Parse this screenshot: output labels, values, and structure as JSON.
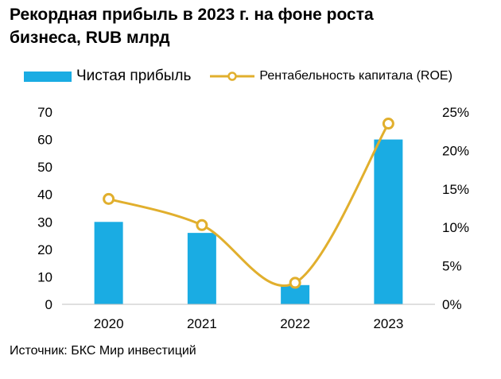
{
  "header": {
    "title_line1": "Рекордная прибыль в 2023 г. на фоне роста",
    "title_line2": "бизнеса, RUB млрд"
  },
  "footer": {
    "source": "Источник: БКС Мир инвестиций"
  },
  "colors": {
    "bar": "#1AACE3",
    "line": "#E1AF2D",
    "marker_fill": "#FFFFFF",
    "axis": "#BFBFBF",
    "text": "#000000"
  },
  "chart_data": {
    "type": "bar",
    "title": "Рекордная прибыль в 2023 г. на фоне роста бизнеса, RUB млрд",
    "categories": [
      "2020",
      "2021",
      "2022",
      "2023"
    ],
    "legend_position": "top",
    "grid": false,
    "series": [
      {
        "name": "Чистая прибыль",
        "type": "bar",
        "axis": "left",
        "values": [
          30,
          26,
          7,
          60
        ]
      },
      {
        "name": "Рентабельность капитала (ROE)",
        "type": "line",
        "axis": "right",
        "smooth": true,
        "values": [
          13.7,
          10.3,
          2.8,
          23.5
        ]
      }
    ],
    "y_left": {
      "min": 0,
      "max": 70,
      "ticks": [
        "0",
        "10",
        "20",
        "30",
        "40",
        "50",
        "60",
        "70"
      ]
    },
    "y_right": {
      "min": 0,
      "max": 25,
      "ticks": [
        "0%",
        "5%",
        "10%",
        "15%",
        "20%",
        "25%"
      ]
    }
  }
}
